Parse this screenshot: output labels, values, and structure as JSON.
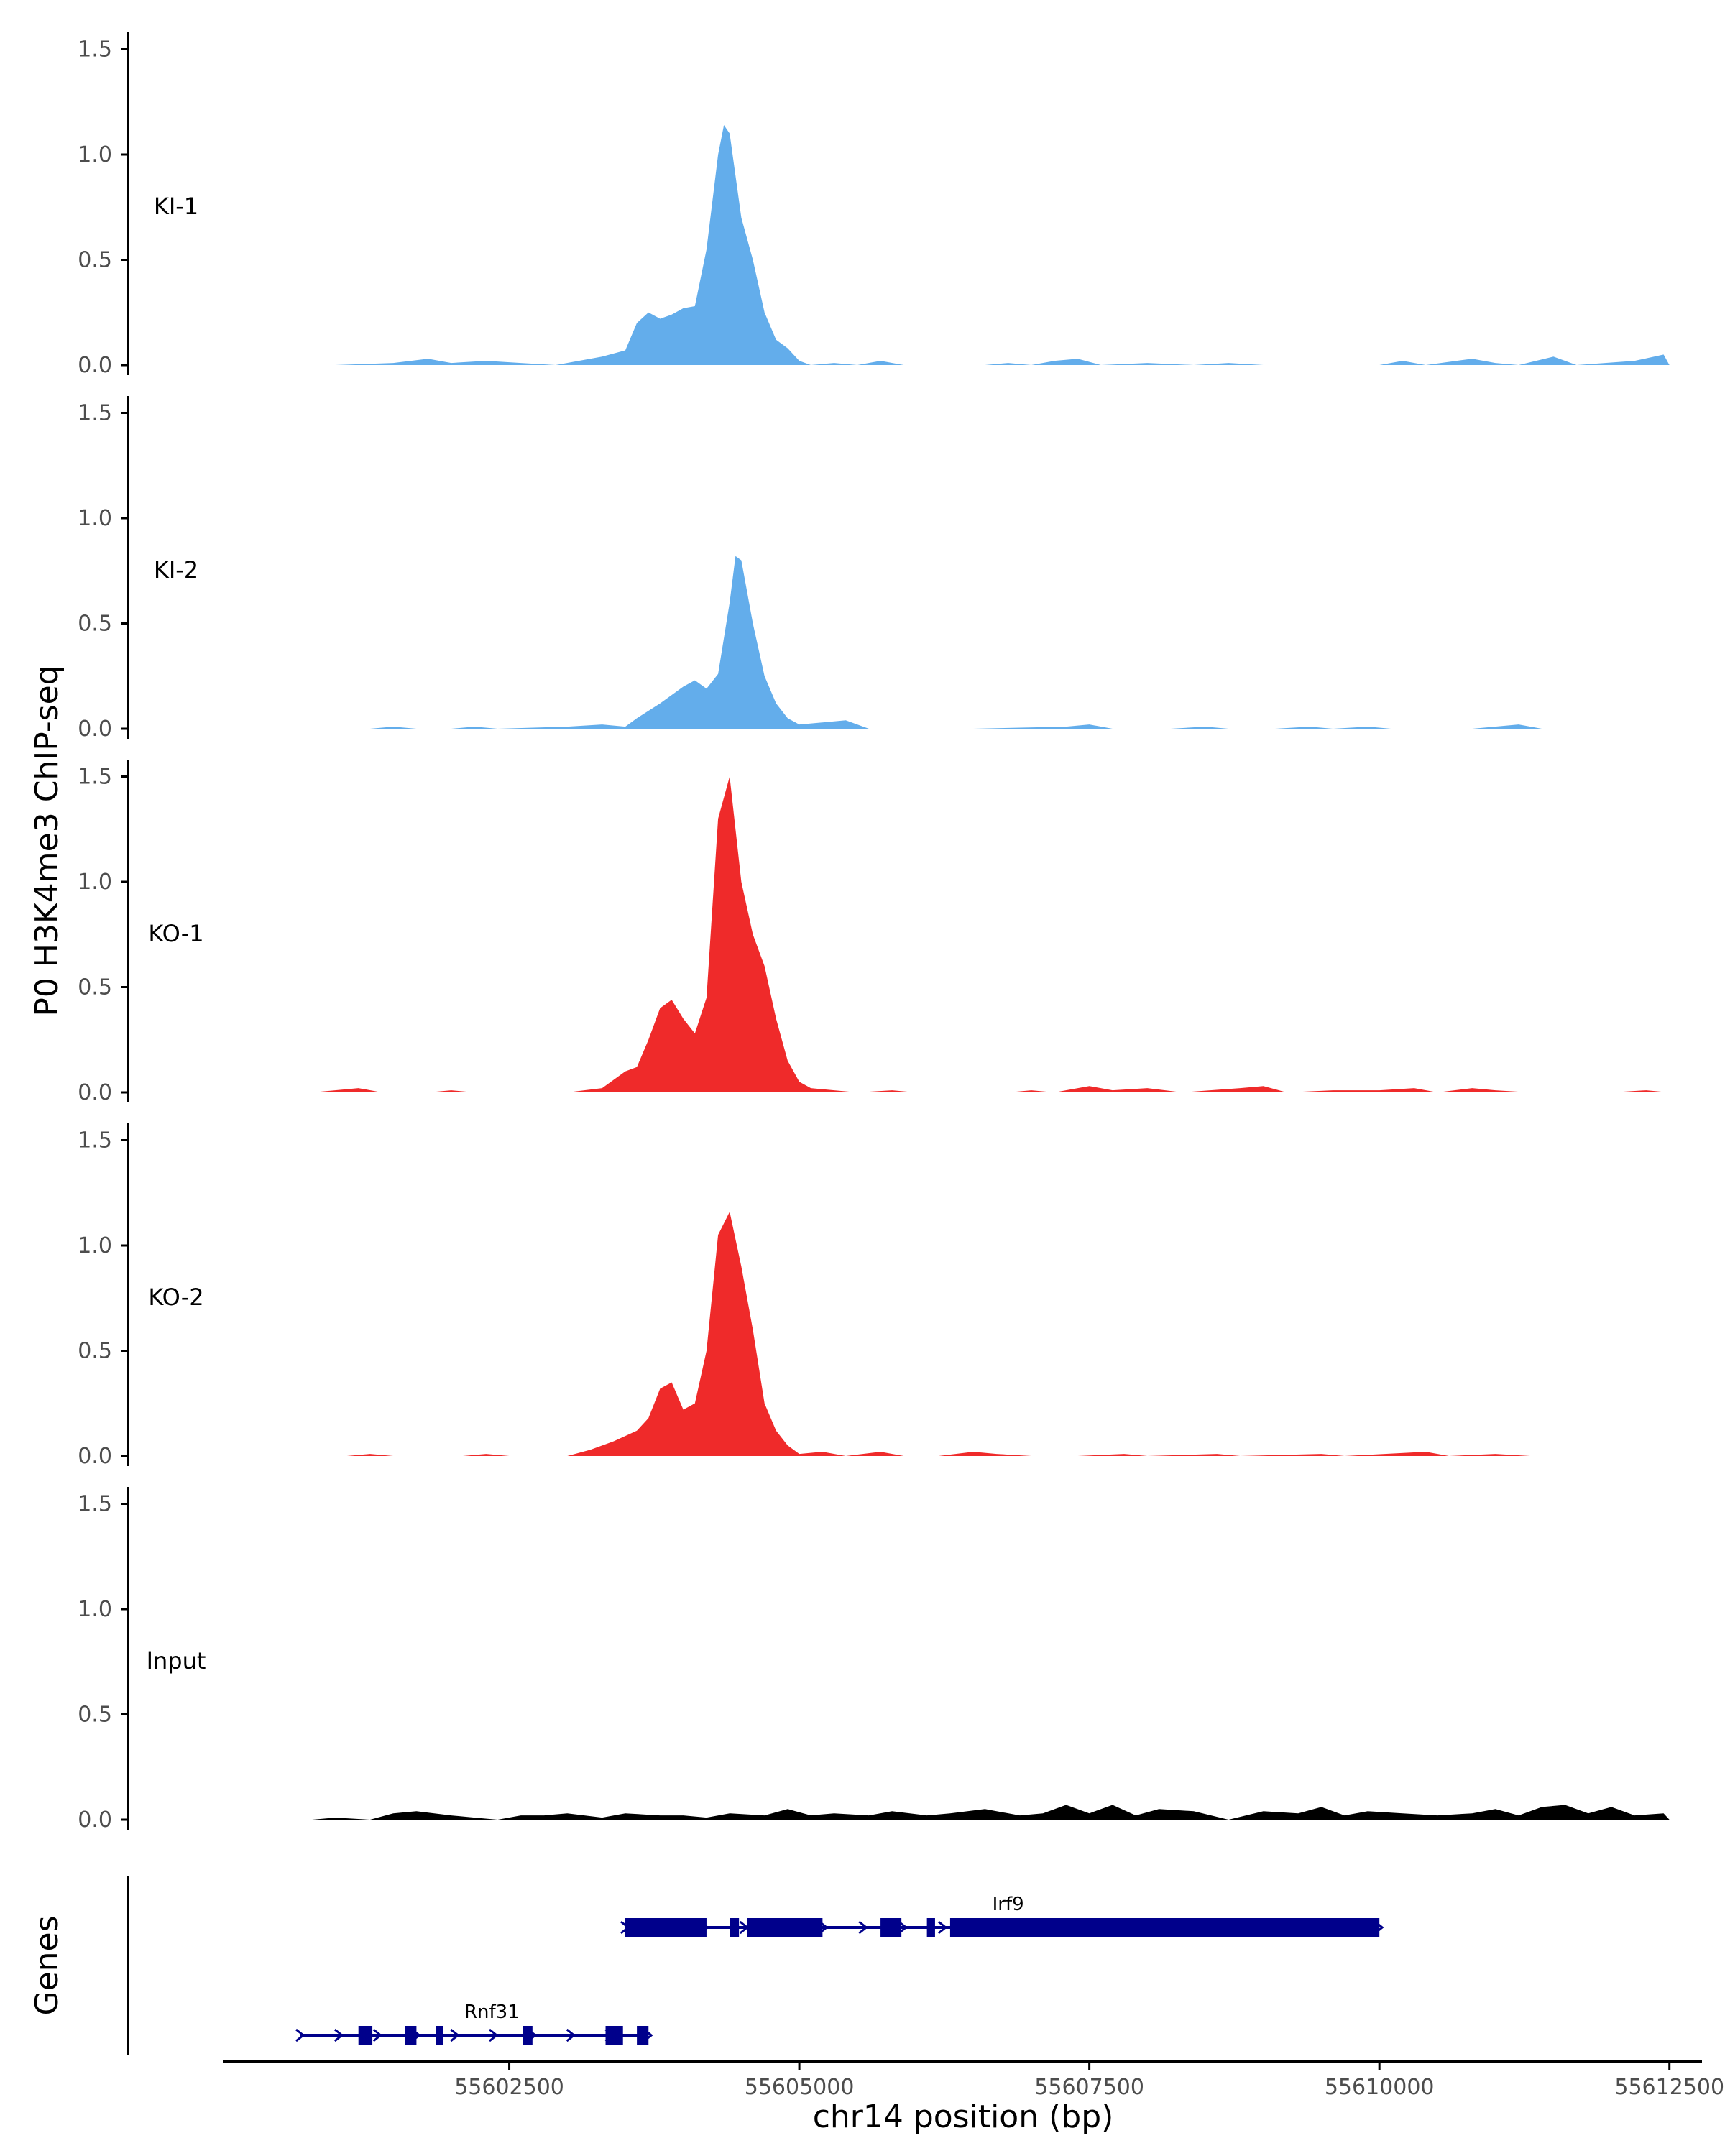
{
  "chart_data": {
    "type": "area",
    "ylabel": "P0 H3K4me3 ChIP-seq",
    "xlabel": "chr14 position (bp)",
    "genes_label": "Genes",
    "ylim": [
      0,
      1.5
    ],
    "yticks": [
      0.0,
      0.5,
      1.0,
      1.5
    ],
    "ytick_labels": [
      "0.0",
      "0.5",
      "1.0",
      "1.5"
    ],
    "xlim": [
      55600000,
      55612700
    ],
    "xticks": [
      55602500,
      55605000,
      55607500,
      55610000,
      55612500
    ],
    "xtick_labels": [
      "55602500",
      "55605000",
      "55607500",
      "55610000",
      "55612500"
    ],
    "colors": {
      "KI": "#63adeb",
      "KO": "#ef2a2a",
      "Input": "#000000",
      "genes": "#00008b"
    },
    "tracks": [
      {
        "name": "KI-1",
        "color": "#63adeb",
        "points": [
          [
            55601000,
            0
          ],
          [
            55601500,
            0.01
          ],
          [
            55601800,
            0.03
          ],
          [
            55602000,
            0.01
          ],
          [
            55602300,
            0.02
          ],
          [
            55602600,
            0.01
          ],
          [
            55602900,
            0.0
          ],
          [
            55603100,
            0.02
          ],
          [
            55603300,
            0.04
          ],
          [
            55603500,
            0.07
          ],
          [
            55603600,
            0.2
          ],
          [
            55603700,
            0.25
          ],
          [
            55603800,
            0.22
          ],
          [
            55603900,
            0.24
          ],
          [
            55604000,
            0.27
          ],
          [
            55604100,
            0.28
          ],
          [
            55604200,
            0.55
          ],
          [
            55604300,
            1.0
          ],
          [
            55604350,
            1.14
          ],
          [
            55604400,
            1.1
          ],
          [
            55604500,
            0.7
          ],
          [
            55604600,
            0.5
          ],
          [
            55604700,
            0.25
          ],
          [
            55604800,
            0.12
          ],
          [
            55604900,
            0.08
          ],
          [
            55605000,
            0.02
          ],
          [
            55605100,
            0.0
          ],
          [
            55605300,
            0.01
          ],
          [
            55605500,
            0.0
          ],
          [
            55605700,
            0.02
          ],
          [
            55605900,
            0.0
          ],
          [
            55606600,
            0.0
          ],
          [
            55606800,
            0.01
          ],
          [
            55607000,
            0.0
          ],
          [
            55607200,
            0.02
          ],
          [
            55607400,
            0.03
          ],
          [
            55607600,
            0.0
          ],
          [
            55608000,
            0.01
          ],
          [
            55608400,
            0.0
          ],
          [
            55608700,
            0.01
          ],
          [
            55609000,
            0.0
          ],
          [
            55610000,
            0.0
          ],
          [
            55610200,
            0.02
          ],
          [
            55610400,
            0.0
          ],
          [
            55610800,
            0.03
          ],
          [
            55611000,
            0.01
          ],
          [
            55611200,
            0.0
          ],
          [
            55611500,
            0.04
          ],
          [
            55611700,
            0.0
          ],
          [
            55612200,
            0.02
          ],
          [
            55612450,
            0.05
          ],
          [
            55612500,
            0
          ]
        ]
      },
      {
        "name": "KI-2",
        "color": "#63adeb",
        "points": [
          [
            55601300,
            0
          ],
          [
            55601500,
            0.01
          ],
          [
            55601700,
            0.0
          ],
          [
            55602000,
            0.0
          ],
          [
            55602200,
            0.01
          ],
          [
            55602400,
            0.0
          ],
          [
            55603000,
            0.01
          ],
          [
            55603300,
            0.02
          ],
          [
            55603500,
            0.01
          ],
          [
            55603600,
            0.05
          ],
          [
            55603800,
            0.12
          ],
          [
            55604000,
            0.2
          ],
          [
            55604100,
            0.23
          ],
          [
            55604200,
            0.19
          ],
          [
            55604300,
            0.26
          ],
          [
            55604400,
            0.6
          ],
          [
            55604450,
            0.82
          ],
          [
            55604500,
            0.8
          ],
          [
            55604600,
            0.5
          ],
          [
            55604700,
            0.25
          ],
          [
            55604800,
            0.12
          ],
          [
            55604900,
            0.05
          ],
          [
            55605000,
            0.02
          ],
          [
            55605200,
            0.03
          ],
          [
            55605400,
            0.04
          ],
          [
            55605600,
            0.0
          ],
          [
            55605800,
            0.0
          ],
          [
            55606200,
            0.0
          ],
          [
            55606500,
            0.0
          ],
          [
            55607300,
            0.01
          ],
          [
            55607500,
            0.02
          ],
          [
            55607700,
            0.0
          ],
          [
            55608200,
            0.0
          ],
          [
            55608500,
            0.01
          ],
          [
            55608700,
            0.0
          ],
          [
            55609100,
            0.0
          ],
          [
            55609400,
            0.01
          ],
          [
            55609600,
            0.0
          ],
          [
            55609900,
            0.01
          ],
          [
            55610100,
            0.0
          ],
          [
            55610800,
            0.0
          ],
          [
            55611200,
            0.02
          ],
          [
            55611400,
            0.0
          ],
          [
            55612000,
            0.0
          ],
          [
            55612400,
            0
          ]
        ]
      },
      {
        "name": "KO-1",
        "color": "#ef2a2a",
        "points": [
          [
            55600800,
            0
          ],
          [
            55601000,
            0.01
          ],
          [
            55601200,
            0.02
          ],
          [
            55601400,
            0.0
          ],
          [
            55601800,
            0.0
          ],
          [
            55602000,
            0.01
          ],
          [
            55602200,
            0.0
          ],
          [
            55603000,
            0.0
          ],
          [
            55603300,
            0.02
          ],
          [
            55603500,
            0.1
          ],
          [
            55603600,
            0.12
          ],
          [
            55603700,
            0.25
          ],
          [
            55603800,
            0.4
          ],
          [
            55603900,
            0.44
          ],
          [
            55604000,
            0.35
          ],
          [
            55604100,
            0.28
          ],
          [
            55604200,
            0.45
          ],
          [
            55604300,
            1.3
          ],
          [
            55604400,
            1.5
          ],
          [
            55604500,
            1.0
          ],
          [
            55604600,
            0.75
          ],
          [
            55604700,
            0.6
          ],
          [
            55604800,
            0.35
          ],
          [
            55604900,
            0.15
          ],
          [
            55605000,
            0.05
          ],
          [
            55605100,
            0.02
          ],
          [
            55605300,
            0.01
          ],
          [
            55605500,
            0.0
          ],
          [
            55605800,
            0.01
          ],
          [
            55606000,
            0.0
          ],
          [
            55606800,
            0.0
          ],
          [
            55607000,
            0.01
          ],
          [
            55607200,
            0.0
          ],
          [
            55607500,
            0.03
          ],
          [
            55607700,
            0.01
          ],
          [
            55608000,
            0.02
          ],
          [
            55608300,
            0.0
          ],
          [
            55608800,
            0.02
          ],
          [
            55609000,
            0.03
          ],
          [
            55609200,
            0.0
          ],
          [
            55609600,
            0.01
          ],
          [
            55610000,
            0.01
          ],
          [
            55610300,
            0.02
          ],
          [
            55610500,
            0.0
          ],
          [
            55610800,
            0.02
          ],
          [
            55611000,
            0.01
          ],
          [
            55611300,
            0.0
          ],
          [
            55612000,
            0.0
          ],
          [
            55612300,
            0.01
          ],
          [
            55612500,
            0
          ]
        ]
      },
      {
        "name": "KO-2",
        "color": "#ef2a2a",
        "points": [
          [
            55600800,
            0
          ],
          [
            55601100,
            0.0
          ],
          [
            55601300,
            0.01
          ],
          [
            55601500,
            0.0
          ],
          [
            55602100,
            0.0
          ],
          [
            55602300,
            0.01
          ],
          [
            55602500,
            0.0
          ],
          [
            55603000,
            0.0
          ],
          [
            55603200,
            0.03
          ],
          [
            55603400,
            0.07
          ],
          [
            55603600,
            0.12
          ],
          [
            55603700,
            0.18
          ],
          [
            55603800,
            0.32
          ],
          [
            55603900,
            0.35
          ],
          [
            55604000,
            0.22
          ],
          [
            55604100,
            0.25
          ],
          [
            55604200,
            0.5
          ],
          [
            55604300,
            1.05
          ],
          [
            55604400,
            1.16
          ],
          [
            55604500,
            0.9
          ],
          [
            55604600,
            0.6
          ],
          [
            55604700,
            0.25
          ],
          [
            55604800,
            0.12
          ],
          [
            55604900,
            0.05
          ],
          [
            55605000,
            0.01
          ],
          [
            55605200,
            0.02
          ],
          [
            55605400,
            0.0
          ],
          [
            55605700,
            0.02
          ],
          [
            55605900,
            0.0
          ],
          [
            55606200,
            0.0
          ],
          [
            55606500,
            0.02
          ],
          [
            55606700,
            0.01
          ],
          [
            55607000,
            0.0
          ],
          [
            55607400,
            0.0
          ],
          [
            55607800,
            0.01
          ],
          [
            55608000,
            0.0
          ],
          [
            55608600,
            0.01
          ],
          [
            55608800,
            0.0
          ],
          [
            55609500,
            0.01
          ],
          [
            55609700,
            0.0
          ],
          [
            55610400,
            0.02
          ],
          [
            55610600,
            0.0
          ],
          [
            55611000,
            0.01
          ],
          [
            55611300,
            0.0
          ],
          [
            55612200,
            0.0
          ],
          [
            55612400,
            0
          ]
        ]
      },
      {
        "name": "Input",
        "color": "#000000",
        "points": [
          [
            55600800,
            0
          ],
          [
            55601000,
            0.01
          ],
          [
            55601300,
            0.0
          ],
          [
            55601500,
            0.03
          ],
          [
            55601700,
            0.04
          ],
          [
            55602000,
            0.02
          ],
          [
            55602200,
            0.01
          ],
          [
            55602400,
            0.0
          ],
          [
            55602600,
            0.02
          ],
          [
            55602800,
            0.02
          ],
          [
            55603000,
            0.03
          ],
          [
            55603300,
            0.01
          ],
          [
            55603500,
            0.03
          ],
          [
            55603800,
            0.02
          ],
          [
            55604000,
            0.02
          ],
          [
            55604200,
            0.01
          ],
          [
            55604400,
            0.03
          ],
          [
            55604700,
            0.02
          ],
          [
            55604900,
            0.05
          ],
          [
            55605100,
            0.02
          ],
          [
            55605300,
            0.03
          ],
          [
            55605600,
            0.02
          ],
          [
            55605800,
            0.04
          ],
          [
            55606100,
            0.02
          ],
          [
            55606300,
            0.03
          ],
          [
            55606600,
            0.05
          ],
          [
            55606900,
            0.02
          ],
          [
            55607100,
            0.03
          ],
          [
            55607300,
            0.07
          ],
          [
            55607500,
            0.03
          ],
          [
            55607700,
            0.07
          ],
          [
            55607900,
            0.02
          ],
          [
            55608100,
            0.05
          ],
          [
            55608400,
            0.04
          ],
          [
            55608700,
            0.0
          ],
          [
            55609000,
            0.04
          ],
          [
            55609300,
            0.03
          ],
          [
            55609500,
            0.06
          ],
          [
            55609700,
            0.02
          ],
          [
            55609900,
            0.04
          ],
          [
            55610200,
            0.03
          ],
          [
            55610500,
            0.02
          ],
          [
            55610800,
            0.03
          ],
          [
            55611000,
            0.05
          ],
          [
            55611200,
            0.02
          ],
          [
            55611400,
            0.06
          ],
          [
            55611600,
            0.07
          ],
          [
            55611800,
            0.03
          ],
          [
            55612000,
            0.06
          ],
          [
            55612200,
            0.02
          ],
          [
            55612450,
            0.03
          ],
          [
            55612500,
            0
          ]
        ]
      }
    ],
    "genes": [
      {
        "name": "Irf9",
        "row": 1,
        "start": 55603500,
        "end": 55610000,
        "exons": [
          [
            55603500,
            55604200
          ],
          [
            55604400,
            55604480
          ],
          [
            55604550,
            55605200
          ],
          [
            55605700,
            55605880
          ],
          [
            55606100,
            55606170
          ],
          [
            55606300,
            55610000
          ]
        ]
      },
      {
        "name": "Rnf31",
        "row": 2,
        "start": 55600700,
        "end": 55603700,
        "exons": [
          [
            55601200,
            55601320
          ],
          [
            55601600,
            55601700
          ],
          [
            55601870,
            55601930
          ],
          [
            55602620,
            55602700
          ],
          [
            55603330,
            55603480
          ],
          [
            55603600,
            55603700
          ]
        ]
      }
    ]
  }
}
